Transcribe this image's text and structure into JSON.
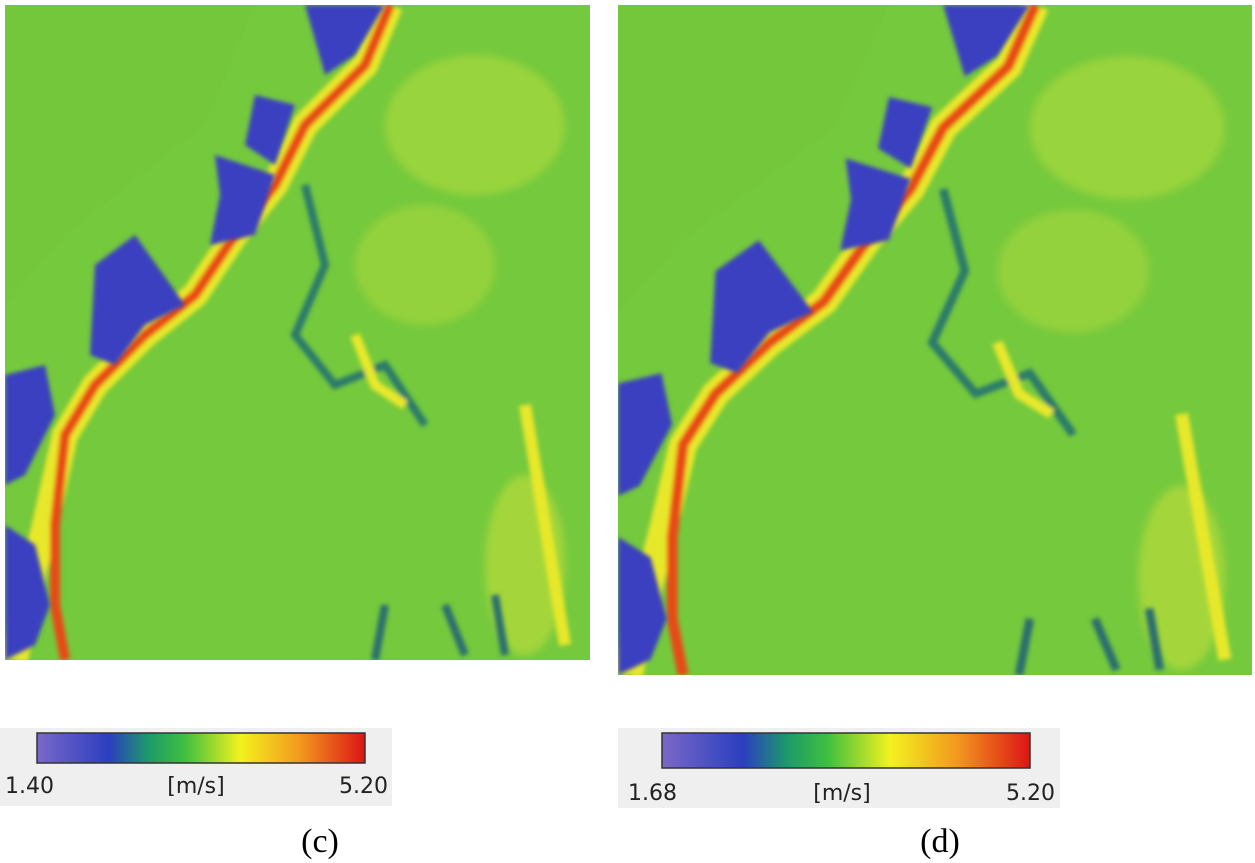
{
  "panels": [
    {
      "label": "(c)",
      "colorbar": {
        "min_label": "1.40",
        "unit": "[m/s]",
        "max_label": "5.20"
      }
    },
    {
      "label": "(d)",
      "colorbar": {
        "min_label": "1.68",
        "unit": "[m/s]",
        "max_label": "5.20"
      }
    }
  ]
}
